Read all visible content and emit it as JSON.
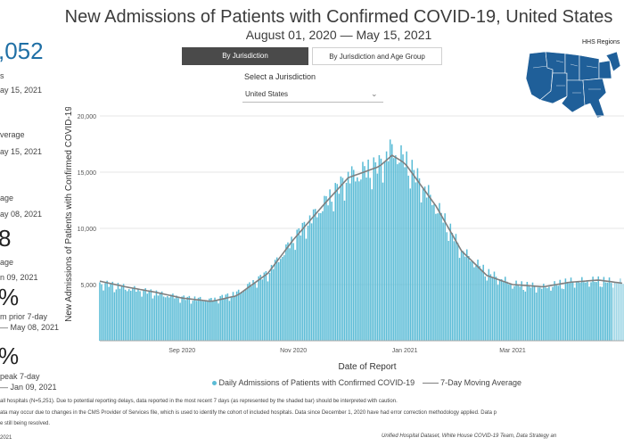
{
  "header": {
    "title": "New Admissions of Patients with Confirmed COVID-19, United States",
    "subtitle": "August 01, 2020 — May 15, 2021"
  },
  "tabs": [
    {
      "label": "By Jurisdiction"
    },
    {
      "label": "By Jurisdiction and Age Group"
    }
  ],
  "jurisdiction": {
    "label": "Select a Jurisdiction",
    "value": "United States"
  },
  "map": {
    "label": "HHS Regions"
  },
  "kpis": {
    "k1_value": ",052",
    "k1_label": "s",
    "k1_date": "ay 15, 2021",
    "k2_label": "verage",
    "k2_date": "ay 15, 2021",
    "k3_label": "age",
    "k3_date": "ay 08, 2021",
    "k4_value": "8",
    "k4_label": "age",
    "k4_date": "n 09, 2021",
    "k5_value": "%",
    "k5_line1": "m prior 7-day",
    "k5_line2": "— May 08, 2021",
    "k6_value": "%",
    "k6_line1": "peak 7-day",
    "k6_line2": "— Jan 09, 2021"
  },
  "footnotes": {
    "f1": "all hospitals (N=5,251). Due to potential reporting delays, data reported in the most recent 7 days (as represented by the shaded bar) should be interpreted with caution.",
    "f2": "ata may occur due to changes in the CMS Provider of Services file, which is used to identify the cohort of included hospitals. Data since December 1, 2020 have had error correction methodology applied. Data p",
    "f3": "e still being resolved.",
    "f4": "2021",
    "credit": "Unified Hospital Dataset, White House COVID-19 Team, Data Strategy an"
  },
  "colors": {
    "bar": "#5bbcd6",
    "line": "#7f7f7f",
    "accent": "#1f6fa5",
    "map": "#1f5f99"
  },
  "chart_data": {
    "type": "bar",
    "title": "",
    "xlabel": "Date of Report",
    "ylabel": "New Admissions of Patients with Confirmed COVID-19",
    "ylim": [
      0,
      20000
    ],
    "yticks": [
      0,
      5000,
      10000,
      15000,
      20000
    ],
    "ytick_labels": [
      "",
      "5,000",
      "10,000",
      "15,000",
      "20,000"
    ],
    "x_range": [
      "2020-08-01",
      "2021-05-15"
    ],
    "xticks": [
      {
        "label": "Sep 2020",
        "date": "2020-09-15"
      },
      {
        "label": "Nov 2020",
        "date": "2020-11-15"
      },
      {
        "label": "Jan 2021",
        "date": "2021-01-15"
      },
      {
        "label": "Mar 2021",
        "date": "2021-03-15"
      }
    ],
    "series": [
      {
        "name": "Daily Admissions of Patients with Confirmed COVID-19",
        "kind": "bar",
        "anchors": [
          [
            "2020-08-01",
            5100
          ],
          [
            "2020-08-15",
            4700
          ],
          [
            "2020-09-01",
            4200
          ],
          [
            "2020-09-15",
            3800
          ],
          [
            "2020-10-01",
            3600
          ],
          [
            "2020-10-15",
            4200
          ],
          [
            "2020-11-01",
            6000
          ],
          [
            "2020-11-15",
            9000
          ],
          [
            "2020-12-01",
            12000
          ],
          [
            "2020-12-15",
            14500
          ],
          [
            "2021-01-01",
            15500
          ],
          [
            "2021-01-08",
            17000
          ],
          [
            "2021-01-15",
            16000
          ],
          [
            "2021-02-01",
            12000
          ],
          [
            "2021-02-15",
            8000
          ],
          [
            "2021-03-01",
            6000
          ],
          [
            "2021-03-15",
            5000
          ],
          [
            "2021-04-01",
            4700
          ],
          [
            "2021-04-15",
            5200
          ],
          [
            "2021-05-01",
            5300
          ],
          [
            "2021-05-15",
            5100
          ]
        ]
      },
      {
        "name": "7-Day Moving Average",
        "kind": "line",
        "anchors": [
          [
            "2020-08-01",
            5300
          ],
          [
            "2020-08-15",
            4800
          ],
          [
            "2020-09-01",
            4300
          ],
          [
            "2020-09-15",
            3800
          ],
          [
            "2020-10-01",
            3500
          ],
          [
            "2020-10-15",
            4000
          ],
          [
            "2020-11-01",
            6000
          ],
          [
            "2020-11-15",
            9000
          ],
          [
            "2020-12-01",
            12000
          ],
          [
            "2020-12-15",
            14500
          ],
          [
            "2021-01-01",
            15500
          ],
          [
            "2021-01-08",
            16500
          ],
          [
            "2021-01-15",
            15800
          ],
          [
            "2021-02-01",
            12000
          ],
          [
            "2021-02-15",
            8000
          ],
          [
            "2021-03-01",
            5800
          ],
          [
            "2021-03-15",
            5000
          ],
          [
            "2021-04-01",
            4800
          ],
          [
            "2021-04-15",
            5200
          ],
          [
            "2021-05-01",
            5400
          ],
          [
            "2021-05-15",
            5100
          ]
        ]
      }
    ],
    "legend": {
      "bar_label": "Daily Admissions of Patients with Confirmed COVID-19",
      "line_label": "7-Day Moving Average",
      "position": "bottom"
    }
  }
}
